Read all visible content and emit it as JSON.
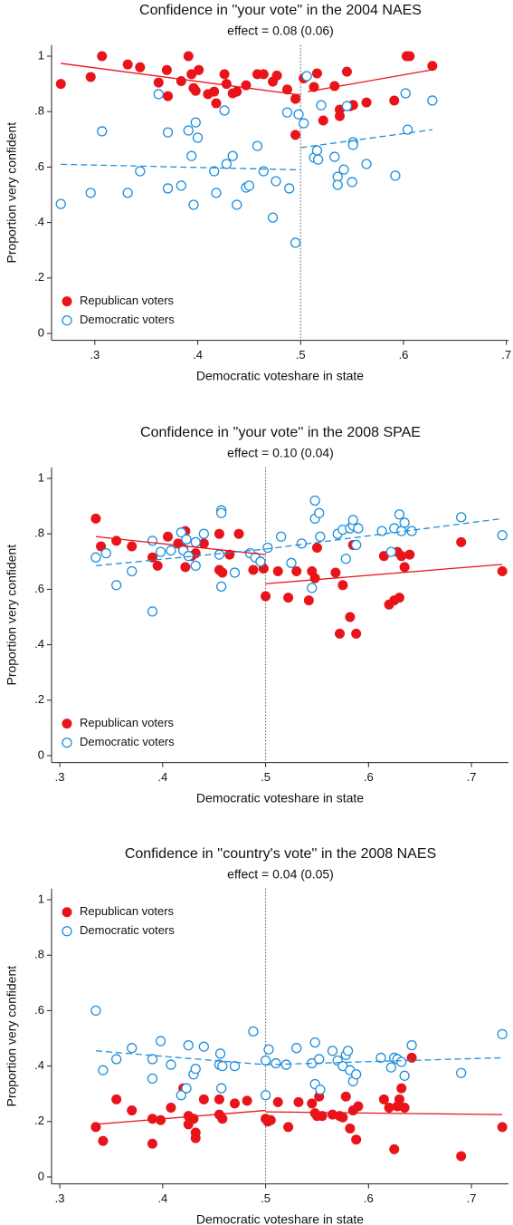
{
  "chart_data": [
    {
      "type": "scatter",
      "title": "Confidence in ''your vote'' in the 2004 NAES",
      "subtitle": "effect = 0.08 (0.06)",
      "xlabel": "Democratic voteshare in state",
      "ylabel": "Proportion very confident",
      "xlim": [
        0.258,
        0.702
      ],
      "ylim": [
        -0.025,
        1.04
      ],
      "xticks": [
        {
          "value": 0.3,
          "label": ".3"
        },
        {
          "value": 0.4,
          "label": ".4"
        },
        {
          "value": 0.5,
          "label": ".5"
        },
        {
          "value": 0.6,
          "label": ".6"
        },
        {
          "value": 0.7,
          "label": ".7"
        }
      ],
      "yticks": [
        0,
        {
          "value": 0.2,
          "label": ".2"
        },
        {
          "value": 0.4,
          "label": ".4"
        },
        {
          "value": 0.6,
          "label": ".6"
        },
        {
          "value": 0.8,
          "label": ".8"
        },
        1
      ],
      "cutoff": 0.5,
      "legend": "lower left",
      "series": [
        {
          "name": "Republican voters",
          "color": "#e8141a",
          "marker": "filled",
          "line": "solid",
          "x": [
            0.267,
            0.296,
            0.307,
            0.332,
            0.344,
            0.362,
            0.37,
            0.371,
            0.384,
            0.391,
            0.394,
            0.396,
            0.398,
            0.401,
            0.41,
            0.416,
            0.418,
            0.426,
            0.428,
            0.434,
            0.438,
            0.447,
            0.458,
            0.464,
            0.473,
            0.477,
            0.487,
            0.495,
            0.495,
            0.503,
            0.506,
            0.513,
            0.516,
            0.522,
            0.533,
            0.538,
            0.538,
            0.545,
            0.548,
            0.551,
            0.564,
            0.591,
            0.603,
            0.606,
            0.628
          ],
          "values": [
            0.9,
            0.925,
            1.0,
            0.97,
            0.96,
            0.905,
            0.95,
            0.856,
            0.91,
            1.0,
            0.935,
            0.885,
            0.875,
            0.95,
            0.863,
            0.872,
            0.83,
            0.935,
            0.9,
            0.866,
            0.872,
            0.895,
            0.935,
            0.935,
            0.908,
            0.93,
            0.88,
            0.846,
            0.716,
            0.92,
            0.928,
            0.889,
            0.938,
            0.768,
            0.892,
            0.807,
            0.784,
            0.944,
            0.82,
            0.824,
            0.833,
            0.84,
            1.0,
            1.0,
            0.965
          ],
          "fit": [
            {
              "x": [
                0.267,
                0.5
              ],
              "values": [
                0.974,
                0.86
              ]
            },
            {
              "x": [
                0.507,
                0.628
              ],
              "values": [
                0.872,
                0.951
              ]
            }
          ]
        },
        {
          "name": "Democratic voters",
          "color": "#1f8fdc",
          "marker": "hollow",
          "line": "dashed",
          "x": [
            0.267,
            0.296,
            0.307,
            0.332,
            0.344,
            0.362,
            0.371,
            0.371,
            0.384,
            0.391,
            0.394,
            0.396,
            0.398,
            0.4,
            0.416,
            0.418,
            0.426,
            0.428,
            0.434,
            0.438,
            0.447,
            0.45,
            0.458,
            0.464,
            0.473,
            0.476,
            0.487,
            0.489,
            0.495,
            0.498,
            0.503,
            0.506,
            0.513,
            0.516,
            0.517,
            0.52,
            0.533,
            0.536,
            0.536,
            0.542,
            0.545,
            0.55,
            0.551,
            0.551,
            0.564,
            0.592,
            0.602,
            0.604,
            0.628
          ],
          "values": [
            0.467,
            0.507,
            0.729,
            0.507,
            0.585,
            0.863,
            0.725,
            0.523,
            0.533,
            0.732,
            0.64,
            0.464,
            0.761,
            0.706,
            0.585,
            0.507,
            0.804,
            0.611,
            0.64,
            0.464,
            0.526,
            0.533,
            0.676,
            0.585,
            0.418,
            0.549,
            0.797,
            0.523,
            0.327,
            0.79,
            0.758,
            0.928,
            0.634,
            0.66,
            0.627,
            0.823,
            0.637,
            0.565,
            0.536,
            0.591,
            0.82,
            0.546,
            0.69,
            0.68,
            0.611,
            0.569,
            0.866,
            0.735,
            0.84
          ],
          "fit": [
            {
              "x": [
                0.267,
                0.5
              ],
              "values": [
                0.61,
                0.59
              ]
            },
            {
              "x": [
                0.5,
                0.628
              ],
              "values": [
                0.67,
                0.735
              ]
            }
          ]
        }
      ]
    },
    {
      "type": "scatter",
      "title": "Confidence in ''your vote'' in the 2008 SPAE",
      "subtitle": "effect = 0.10 (0.04)",
      "xlabel": "Democratic voteshare in state",
      "ylabel": "Proportion very confident",
      "xlim": [
        0.292,
        0.736
      ],
      "ylim": [
        -0.025,
        1.04
      ],
      "xticks": [
        {
          "value": 0.3,
          "label": ".3"
        },
        {
          "value": 0.4,
          "label": ".4"
        },
        {
          "value": 0.5,
          "label": ".5"
        },
        {
          "value": 0.6,
          "label": ".6"
        },
        {
          "value": 0.7,
          "label": ".7"
        }
      ],
      "yticks": [
        0,
        {
          "value": 0.2,
          "label": ".2"
        },
        {
          "value": 0.4,
          "label": ".4"
        },
        {
          "value": 0.6,
          "label": ".6"
        },
        {
          "value": 0.8,
          "label": ".8"
        },
        1
      ],
      "cutoff": 0.5,
      "legend": "lower left",
      "series": [
        {
          "name": "Republican voters",
          "color": "#e8141a",
          "marker": "filled",
          "line": "solid",
          "x": [
            0.335,
            0.34,
            0.355,
            0.37,
            0.39,
            0.395,
            0.405,
            0.415,
            0.42,
            0.422,
            0.422,
            0.428,
            0.432,
            0.44,
            0.455,
            0.455,
            0.458,
            0.465,
            0.474,
            0.488,
            0.498,
            0.5,
            0.512,
            0.522,
            0.53,
            0.542,
            0.545,
            0.548,
            0.55,
            0.568,
            0.572,
            0.575,
            0.582,
            0.585,
            0.588,
            0.615,
            0.62,
            0.625,
            0.628,
            0.63,
            0.632,
            0.635,
            0.64,
            0.69,
            0.73
          ],
          "values": [
            0.855,
            0.755,
            0.775,
            0.755,
            0.715,
            0.685,
            0.79,
            0.765,
            0.745,
            0.81,
            0.68,
            0.72,
            0.73,
            0.765,
            0.67,
            0.8,
            0.66,
            0.725,
            0.8,
            0.67,
            0.675,
            0.575,
            0.665,
            0.57,
            0.665,
            0.56,
            0.665,
            0.64,
            0.75,
            0.66,
            0.44,
            0.615,
            0.5,
            0.76,
            0.44,
            0.72,
            0.545,
            0.56,
            0.735,
            0.57,
            0.72,
            0.68,
            0.725,
            0.77,
            0.665
          ],
          "fit": [
            {
              "x": [
                0.335,
                0.5
              ],
              "values": [
                0.79,
                0.725
              ]
            },
            {
              "x": [
                0.5,
                0.73
              ],
              "values": [
                0.62,
                0.69
              ]
            }
          ]
        },
        {
          "name": "Democratic voters",
          "color": "#1f8fdc",
          "marker": "hollow",
          "line": "dashed",
          "x": [
            0.335,
            0.345,
            0.355,
            0.37,
            0.39,
            0.39,
            0.398,
            0.408,
            0.418,
            0.42,
            0.423,
            0.425,
            0.432,
            0.432,
            0.44,
            0.455,
            0.457,
            0.457,
            0.457,
            0.47,
            0.485,
            0.49,
            0.495,
            0.502,
            0.515,
            0.525,
            0.535,
            0.545,
            0.548,
            0.548,
            0.552,
            0.553,
            0.57,
            0.575,
            0.578,
            0.582,
            0.585,
            0.585,
            0.588,
            0.59,
            0.613,
            0.622,
            0.625,
            0.63,
            0.632,
            0.635,
            0.642,
            0.69,
            0.73
          ],
          "values": [
            0.715,
            0.73,
            0.615,
            0.665,
            0.52,
            0.775,
            0.735,
            0.74,
            0.805,
            0.74,
            0.78,
            0.72,
            0.77,
            0.685,
            0.8,
            0.725,
            0.885,
            0.875,
            0.61,
            0.66,
            0.73,
            0.715,
            0.7,
            0.75,
            0.79,
            0.695,
            0.765,
            0.605,
            0.92,
            0.855,
            0.875,
            0.79,
            0.8,
            0.815,
            0.71,
            0.82,
            0.83,
            0.85,
            0.76,
            0.82,
            0.81,
            0.735,
            0.82,
            0.87,
            0.81,
            0.84,
            0.81,
            0.86,
            0.795
          ],
          "fit": [
            {
              "x": [
                0.335,
                0.5
              ],
              "values": [
                0.685,
                0.745
              ]
            },
            {
              "x": [
                0.5,
                0.73
              ],
              "values": [
                0.745,
                0.855
              ]
            }
          ]
        }
      ]
    },
    {
      "type": "scatter",
      "title": "Confidence in ''country's vote'' in the 2008 NAES",
      "subtitle": "effect = 0.04 (0.05)",
      "xlabel": "Democratic voteshare in state",
      "ylabel": "Proportion very confident",
      "xlim": [
        0.292,
        0.736
      ],
      "ylim": [
        -0.025,
        1.04
      ],
      "xticks": [
        {
          "value": 0.3,
          "label": ".3"
        },
        {
          "value": 0.4,
          "label": ".4"
        },
        {
          "value": 0.5,
          "label": ".5"
        },
        {
          "value": 0.6,
          "label": ".6"
        },
        {
          "value": 0.7,
          "label": ".7"
        }
      ],
      "yticks": [
        0,
        {
          "value": 0.2,
          "label": ".2"
        },
        {
          "value": 0.4,
          "label": ".4"
        },
        {
          "value": 0.6,
          "label": ".6"
        },
        {
          "value": 0.8,
          "label": ".8"
        },
        1
      ],
      "cutoff": 0.5,
      "legend": "upper left",
      "series": [
        {
          "name": "Republican voters",
          "color": "#e8141a",
          "marker": "filled",
          "line": "solid",
          "x": [
            0.335,
            0.342,
            0.355,
            0.37,
            0.39,
            0.39,
            0.398,
            0.408,
            0.42,
            0.425,
            0.425,
            0.43,
            0.432,
            0.432,
            0.44,
            0.455,
            0.455,
            0.458,
            0.47,
            0.482,
            0.5,
            0.502,
            0.505,
            0.512,
            0.522,
            0.532,
            0.545,
            0.548,
            0.55,
            0.552,
            0.555,
            0.565,
            0.572,
            0.575,
            0.578,
            0.582,
            0.585,
            0.588,
            0.59,
            0.615,
            0.62,
            0.625,
            0.628,
            0.63,
            0.632,
            0.635,
            0.642,
            0.69,
            0.73
          ],
          "values": [
            0.18,
            0.13,
            0.28,
            0.24,
            0.21,
            0.12,
            0.205,
            0.25,
            0.32,
            0.22,
            0.19,
            0.21,
            0.16,
            0.14,
            0.28,
            0.225,
            0.28,
            0.21,
            0.265,
            0.275,
            0.21,
            0.2,
            0.205,
            0.27,
            0.18,
            0.27,
            0.265,
            0.23,
            0.22,
            0.29,
            0.22,
            0.225,
            0.22,
            0.215,
            0.29,
            0.175,
            0.24,
            0.135,
            0.255,
            0.28,
            0.25,
            0.1,
            0.255,
            0.28,
            0.32,
            0.25,
            0.43,
            0.075,
            0.18
          ],
          "fit": [
            {
              "x": [
                0.335,
                0.5
              ],
              "values": [
                0.19,
                0.24
              ]
            },
            {
              "x": [
                0.5,
                0.73
              ],
              "values": [
                0.235,
                0.225
              ]
            }
          ]
        },
        {
          "name": "Democratic voters",
          "color": "#1f8fdc",
          "marker": "hollow",
          "line": "dashed",
          "x": [
            0.335,
            0.342,
            0.355,
            0.37,
            0.39,
            0.39,
            0.398,
            0.408,
            0.418,
            0.423,
            0.425,
            0.43,
            0.432,
            0.44,
            0.455,
            0.456,
            0.457,
            0.458,
            0.47,
            0.488,
            0.5,
            0.5,
            0.503,
            0.51,
            0.52,
            0.53,
            0.545,
            0.548,
            0.548,
            0.552,
            0.553,
            0.565,
            0.57,
            0.575,
            0.578,
            0.58,
            0.582,
            0.585,
            0.588,
            0.612,
            0.622,
            0.625,
            0.628,
            0.632,
            0.635,
            0.642,
            0.69,
            0.73
          ],
          "values": [
            0.6,
            0.385,
            0.425,
            0.465,
            0.425,
            0.355,
            0.49,
            0.405,
            0.295,
            0.32,
            0.475,
            0.37,
            0.39,
            0.47,
            0.405,
            0.445,
            0.32,
            0.4,
            0.4,
            0.525,
            0.295,
            0.42,
            0.46,
            0.41,
            0.405,
            0.465,
            0.41,
            0.485,
            0.335,
            0.425,
            0.315,
            0.455,
            0.42,
            0.4,
            0.44,
            0.455,
            0.385,
            0.345,
            0.37,
            0.43,
            0.395,
            0.43,
            0.425,
            0.415,
            0.365,
            0.475,
            0.375,
            0.515
          ],
          "fit": [
            {
              "x": [
                0.335,
                0.5
              ],
              "values": [
                0.455,
                0.405
              ]
            },
            {
              "x": [
                0.5,
                0.73
              ],
              "values": [
                0.405,
                0.43
              ]
            }
          ]
        }
      ]
    }
  ]
}
